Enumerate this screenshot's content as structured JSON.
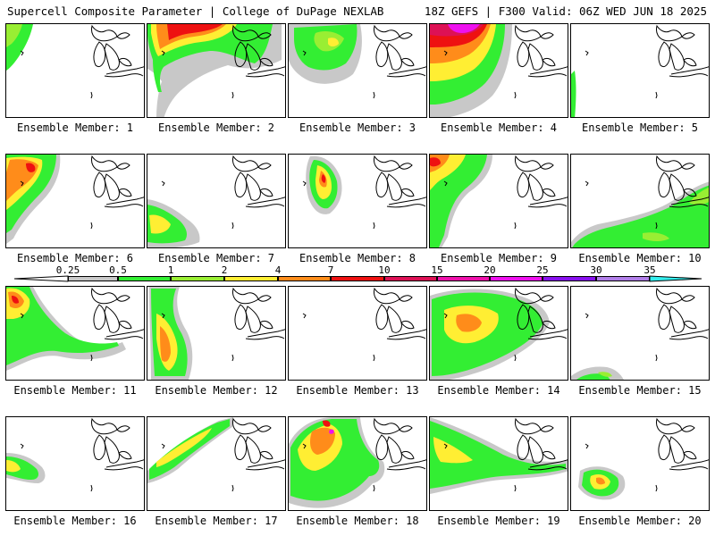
{
  "header": {
    "left": "Supercell Composite Parameter | College of DuPage NEXLAB",
    "right": "18Z GEFS | F300 Valid: 06Z WED JUN 18 2025"
  },
  "colors": {
    "grey": "#c8c8c8",
    "green": "#33ee33",
    "lightgreen": "#99ee33",
    "yellow": "#ffee33",
    "orange": "#ff8c1a",
    "red": "#ee1111",
    "crimson": "#dd1155",
    "pink": "#ee11aa",
    "magenta": "#ee11ee",
    "purple": "#8811ee",
    "lavender": "#b07ee8",
    "cyan": "#33eeee"
  },
  "legend": {
    "labels": [
      "0.25",
      "0.5",
      "1",
      "2",
      "4",
      "7",
      "10",
      "15",
      "20",
      "25",
      "30",
      "35"
    ],
    "colors": [
      "#c8c8c8",
      "#33ee33",
      "#99ee33",
      "#ffee33",
      "#ff8c1a",
      "#ee1111",
      "#dd1155",
      "#ee11aa",
      "#ee11ee",
      "#8811ee",
      "#b07ee8",
      "#33eeee"
    ]
  },
  "members": [
    {
      "label": "Ensemble Member: 1"
    },
    {
      "label": "Ensemble Member: 2"
    },
    {
      "label": "Ensemble Member: 3"
    },
    {
      "label": "Ensemble Member: 4"
    },
    {
      "label": "Ensemble Member: 5"
    },
    {
      "label": "Ensemble Member: 6"
    },
    {
      "label": "Ensemble Member: 7"
    },
    {
      "label": "Ensemble Member: 8"
    },
    {
      "label": "Ensemble Member: 9"
    },
    {
      "label": "Ensemble Member: 10"
    },
    {
      "label": "Ensemble Member: 11"
    },
    {
      "label": "Ensemble Member: 12"
    },
    {
      "label": "Ensemble Member: 13"
    },
    {
      "label": "Ensemble Member: 14"
    },
    {
      "label": "Ensemble Member: 15"
    },
    {
      "label": "Ensemble Member: 16"
    },
    {
      "label": "Ensemble Member: 17"
    },
    {
      "label": "Ensemble Member: 18"
    },
    {
      "label": "Ensemble Member: 19"
    },
    {
      "label": "Ensemble Member: 20"
    }
  ]
}
